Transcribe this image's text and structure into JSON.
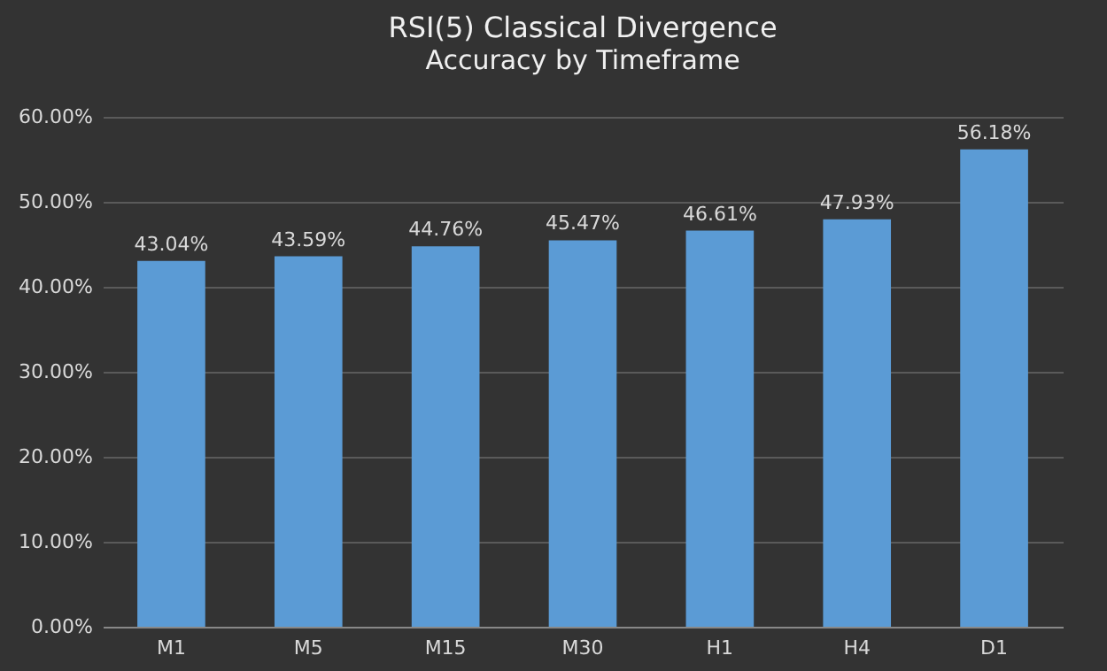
{
  "chart_data": {
    "type": "bar",
    "title": "RSI(5) Classical Divergence",
    "subtitle": "Accuracy by Timeframe",
    "categories": [
      "M1",
      "M5",
      "M15",
      "M30",
      "H1",
      "H4",
      "D1"
    ],
    "values": [
      43.04,
      43.59,
      44.76,
      45.47,
      46.61,
      47.93,
      56.18
    ],
    "value_labels": [
      "43.04%",
      "43.59%",
      "44.76%",
      "45.47%",
      "46.61%",
      "47.93%",
      "56.18%"
    ],
    "color": "#5b9bd5",
    "ylim": [
      0,
      60
    ],
    "yticks": [
      {
        "value": 0,
        "label": "0.00%"
      },
      {
        "value": 10,
        "label": "10.00%"
      },
      {
        "value": 20,
        "label": "20.00%"
      },
      {
        "value": 30,
        "label": "30.00%"
      },
      {
        "value": 40,
        "label": "40.00%"
      },
      {
        "value": 50,
        "label": "50.00%"
      },
      {
        "value": 60,
        "label": "60.00%"
      }
    ],
    "grid": "y"
  }
}
